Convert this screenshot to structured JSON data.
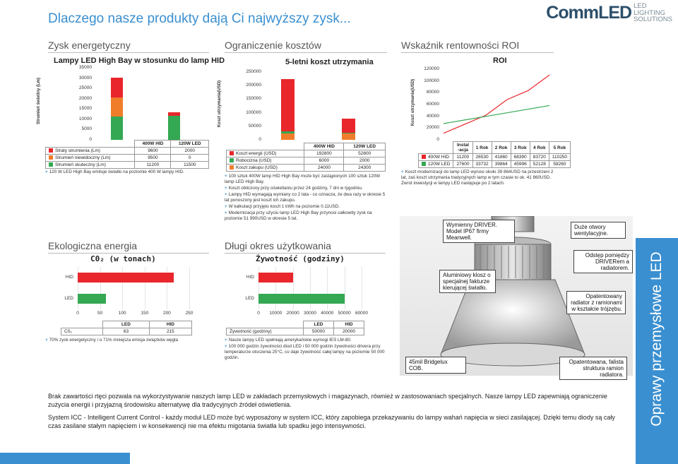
{
  "header": {
    "title": "Dlaczego nasze produkty dają Ci najwyższy zysk...",
    "logo": {
      "main": "CommLED",
      "lines": [
        "LED",
        "LIGHTING",
        "SOLUTIONS"
      ]
    }
  },
  "energy": {
    "section": "Zysk energetyczny",
    "chart_title": "Lampy LED High Bay w stosunku do lamp HID",
    "ylabel": "Strumień świetlny (Lm)",
    "yticks": [
      "35000",
      "30000",
      "25000",
      "20000",
      "15000",
      "10000",
      "5000",
      "0"
    ],
    "cols": [
      "400W HID",
      "120W LED"
    ],
    "rows": [
      {
        "label": "Straty strumienia (Lm)",
        "color": "#e8262b",
        "values": [
          "9600",
          "2000"
        ]
      },
      {
        "label": "Strumień niewidoczny (Lm)",
        "color": "#f07d2a",
        "values": [
          "9500",
          "0"
        ]
      },
      {
        "label": "Strumień skuteczny (Lm)",
        "color": "#34a853",
        "values": [
          "11200",
          "11500"
        ]
      }
    ],
    "note": "120 W LED High Bay emituje światło na poziomie 400 W lampy HID."
  },
  "costs": {
    "section": "Ograniczenie kosztów",
    "chart_title": "5-letni koszt utrzymania",
    "ylabel": "Koszt utrzymania(USD)",
    "yticks": [
      "250000",
      "200000",
      "150000",
      "100000",
      "50000",
      "0"
    ],
    "cols": [
      "400W HID",
      "120W LED"
    ],
    "rows": [
      {
        "label": "Koszt energii (USD)",
        "color": "#e8262b",
        "values": [
          "192800",
          "52800"
        ]
      },
      {
        "label": "Robocizna (USD)",
        "color": "#34a853",
        "values": [
          "6000",
          "2000"
        ]
      },
      {
        "label": "Koszt zakupu (USD)",
        "color": "#f07d2a",
        "values": [
          "24000",
          "24300"
        ]
      }
    ],
    "notes": [
      "100 sztuk 400W lamp HID High Bay może być zastąpionych 100 sztuk 120W lamp LED High Bay.",
      "Koszt obliczony przy oświetlaniu przez 24 godziny, 7 dni w tygodniu.",
      "Lampy HID wymagają wymiany co 2 lata - co oznacza, że dwa razy w okresie 5 lat ponoszony jest koszt ich zakupu.",
      "W kalkulacji przyjęto koszt 1 kWh na poziomie 0.11USD.",
      "Modernizacja przy użyciu lamp LED High Bay przynosi całkowity zysk na poziomie 51 990USD w okresie 5 lat."
    ]
  },
  "roi": {
    "section": "Wskaźnik rentowności ROI",
    "chart_title": "ROI",
    "ylabel": "Koszt utrzymania(USD)",
    "yticks": [
      "120000",
      "100000",
      "80000",
      "60000",
      "40000",
      "20000",
      "0"
    ],
    "header": [
      "",
      "Instal -acja",
      "1 Rok",
      "2 Rok",
      "3 Rok",
      "4 Rok",
      "5 Rok"
    ],
    "rows": [
      {
        "label": "400W HID",
        "color": "#e8262b",
        "values": [
          "11200",
          "26530",
          "41860",
          "68390",
          "83720",
          "110250"
        ]
      },
      {
        "label": "120W LED",
        "color": "#34a853",
        "values": [
          "27600",
          "33732",
          "39864",
          "45996",
          "52128",
          "58260"
        ]
      }
    ],
    "note": "Koszt modernizacji do lamp LED wynosi około 39 864USD na przestrzeni 2 lat, zaś koszt utrzymania tradycyjnych lamp w tym czasie to ok. 41 860USD. Zwrot inwestycji w lampy LED następuje po 2 latach."
  },
  "eco": {
    "section": "Ekologiczna energia",
    "chart_title": "C0₂ (w tonach)",
    "cats": [
      "HID",
      "LED"
    ],
    "xticks": [
      "0",
      "50",
      "100",
      "150",
      "200",
      "250"
    ],
    "table_head": [
      "LED",
      "HID"
    ],
    "row_label": "C0₂",
    "values": [
      "63",
      "215"
    ],
    "note": "70% zysk energetyczny i o 71% mniejsza emisja związków węgla"
  },
  "life": {
    "section": "Długi okres użytkowania",
    "chart_title": "Żywotność (godziny)",
    "cats": [
      "HID",
      "LED"
    ],
    "xticks": [
      "0",
      "10000",
      "20000",
      "30000",
      "40000",
      "50000",
      "60000"
    ],
    "table_head": [
      "LED",
      "HID"
    ],
    "row_label": "Żywotność (godziny)",
    "values": [
      "50000",
      "20000"
    ],
    "notes": [
      "Nasze lampy LED spełniają amerykańskie wymogi IES LM-80.",
      "100 000 godzin żywotności diod LED i 50 000 godzin żywotności drivera przy temperaturze otoczenia 25°C, co daje żywotność całej lampy na poziomie 50 000 godzin."
    ]
  },
  "callouts": {
    "driver": "Wymienny DRIVER. Model IP67 firmy Meanwell.",
    "housing": "Duże otwory wentylacyjne.",
    "gap": "Odstęp pomiędzy DRIVERem a radiatorem.",
    "aluminium": "Aluminiowy klosz o specjalnej fakturze kierującej światło.",
    "radiator": "Opatentowany radiator z ramionami w kształcie trójzębu.",
    "cob": "45mil Bridgelux COB.",
    "wave": "Opatentowana, falista struktura ramion radiatora."
  },
  "bottom": {
    "para1": "Brak zawartości rtęci pozwala na wykorzystywanie naszych lamp LED w zakładach przemysłowych i magazynach, również w zastosowaniach specjalnych. Nasze lampy LED zapewniają ograniczenie zużycia energii i przyjazną środowisku alternatywę dla tradycyjnych źródeł oświetlenia.",
    "para2": "System ICC - Intelligent Current Control - każdy moduł LED może być wyposażony w system ICC, który zapobiega przekazywaniu do lampy wahań napięcia w sieci zasilającej. Dzięki temu diody są cały czas zasilane stałym napięciem i w konsekwencji nie ma efektu migotania światła lub spadku jego intensywności."
  },
  "side_label": "Oprawy przemysłowe LED",
  "chart_data": [
    {
      "type": "bar",
      "title": "Lampy LED High Bay w stosunku do lamp HID",
      "ylabel": "Strumień świetlny (Lm)",
      "categories": [
        "400W HID",
        "120W LED"
      ],
      "ylim": [
        0,
        35000
      ],
      "stacked": true,
      "series": [
        {
          "name": "Strumień skuteczny (Lm)",
          "values": [
            11200,
            11500
          ]
        },
        {
          "name": "Strumień niewidoczny (Lm)",
          "values": [
            9500,
            0
          ]
        },
        {
          "name": "Straty strumienia (Lm)",
          "values": [
            9600,
            2000
          ]
        }
      ]
    },
    {
      "type": "bar",
      "title": "5-letni koszt utrzymania",
      "ylabel": "Koszt utrzymania(USD)",
      "categories": [
        "400W HID",
        "120W LED"
      ],
      "ylim": [
        0,
        250000
      ],
      "stacked": true,
      "series": [
        {
          "name": "Koszt zakupu (USD)",
          "values": [
            24000,
            24300
          ]
        },
        {
          "name": "Robocizna (USD)",
          "values": [
            6000,
            2000
          ]
        },
        {
          "name": "Koszt energii (USD)",
          "values": [
            192800,
            52800
          ]
        }
      ]
    },
    {
      "type": "line",
      "title": "ROI",
      "ylabel": "Koszt utrzymania(USD)",
      "x": [
        "Instal -acja",
        "1 Rok",
        "2 Rok",
        "3 Rok",
        "4 Rok",
        "5 Rok"
      ],
      "ylim": [
        0,
        120000
      ],
      "series": [
        {
          "name": "400W HID",
          "values": [
            11200,
            26530,
            41860,
            68390,
            83720,
            110250
          ]
        },
        {
          "name": "120W LED",
          "values": [
            27600,
            33732,
            39864,
            45996,
            52128,
            58260
          ]
        }
      ]
    },
    {
      "type": "bar",
      "orientation": "horizontal",
      "title": "C0₂ (w tonach)",
      "categories": [
        "HID",
        "LED"
      ],
      "values": [
        215,
        63
      ],
      "xlim": [
        0,
        250
      ]
    },
    {
      "type": "bar",
      "orientation": "horizontal",
      "title": "Żywotność (godziny)",
      "categories": [
        "HID",
        "LED"
      ],
      "values": [
        20000,
        50000
      ],
      "xlim": [
        0,
        60000
      ]
    }
  ]
}
